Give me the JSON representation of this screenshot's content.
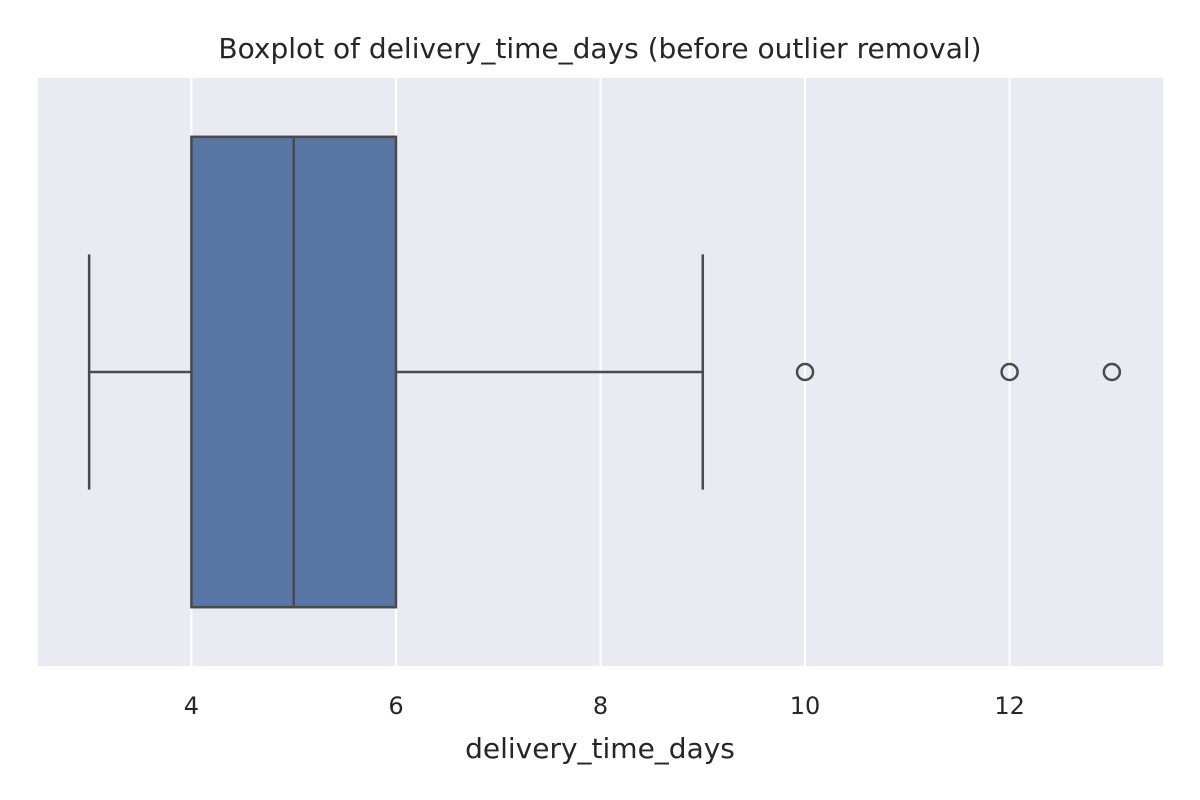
{
  "chart_data": {
    "type": "box",
    "title": "Boxplot of delivery_time_days (before outlier removal)",
    "xlabel": "delivery_time_days",
    "ylabel": "",
    "xlim": [
      2.5,
      13.5
    ],
    "xticks": [
      4,
      6,
      8,
      10,
      12
    ],
    "tick_labels": [
      "4",
      "6",
      "8",
      "10",
      "12"
    ],
    "grid": true,
    "orientation": "horizontal",
    "box": {
      "whisker_low": 3,
      "q1": 4,
      "median": 5,
      "q3": 6,
      "whisker_high": 9
    },
    "outliers": [
      10,
      12,
      13
    ],
    "colors": {
      "box_fill": "#5875a4",
      "line": "#4a4a4a",
      "background": "#eaeaf2",
      "grid": "#ffffff"
    }
  }
}
